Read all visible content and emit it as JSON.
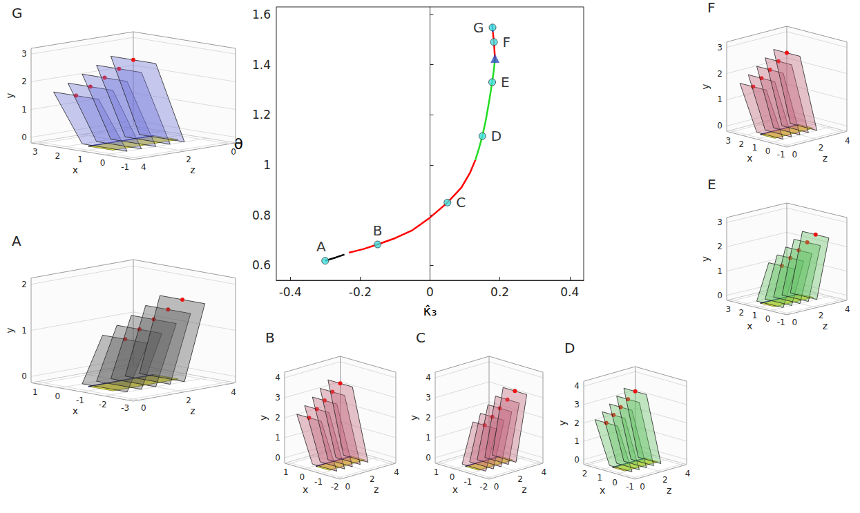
{
  "chart_data": {
    "type": "line",
    "xlabel": "κ̂₃",
    "ylabel": "θ",
    "xlim": [
      -0.44,
      0.44
    ],
    "xticks": [
      -0.4,
      -0.2,
      0,
      0.2,
      0.4
    ],
    "ylim": [
      0.54,
      1.63
    ],
    "yticks": [
      0.6,
      0.8,
      1,
      1.2,
      1.4,
      1.6
    ],
    "grid": false,
    "series": [
      {
        "color": "#000000",
        "x": [
          -0.3,
          -0.27,
          -0.245
        ],
        "values": [
          0.618,
          0.631,
          0.643
        ]
      },
      {
        "color": "#ff0000",
        "x": [
          -0.232,
          -0.19,
          -0.15,
          -0.1,
          -0.05,
          0.0,
          0.05,
          0.09,
          0.115,
          0.13
        ],
        "values": [
          0.65,
          0.665,
          0.683,
          0.708,
          0.74,
          0.79,
          0.85,
          0.91,
          0.97,
          1.02
        ]
      },
      {
        "color": "#22dd22",
        "x": [
          0.13,
          0.14,
          0.15,
          0.16,
          0.17,
          0.178,
          0.183,
          0.186
        ],
        "values": [
          1.02,
          1.065,
          1.115,
          1.18,
          1.26,
          1.33,
          1.38,
          1.425
        ]
      },
      {
        "color": "#ff0000",
        "x": [
          0.186,
          0.183,
          0.18
        ],
        "values": [
          1.425,
          1.49,
          1.53
        ]
      },
      {
        "color": "#2233cc",
        "x": [
          0.18,
          0.178
        ],
        "values": [
          1.53,
          1.56
        ]
      }
    ],
    "points": {
      "labels": [
        "A",
        "B",
        "C",
        "D",
        "E",
        "F",
        "G"
      ],
      "color": "#40dede",
      "x": [
        -0.3,
        -0.15,
        0.05,
        0.15,
        0.178,
        0.183,
        0.179
      ],
      "values": [
        0.618,
        0.683,
        0.85,
        1.115,
        1.33,
        1.49,
        1.548
      ]
    },
    "marker_point": {
      "x": 0.186,
      "value": 1.425,
      "color": "#3050c0",
      "marker": "triangle"
    }
  },
  "panels": [
    {
      "letter": "G",
      "color": "#6f73d8",
      "axis_labels": {
        "x": "x",
        "y": "y",
        "z": "z"
      },
      "xticks": [
        3,
        2,
        1,
        0,
        -1
      ],
      "yticks": [
        0,
        1,
        2,
        3
      ],
      "zticks": [
        4,
        2,
        0
      ]
    },
    {
      "letter": "A",
      "color": "#555555",
      "axis_labels": {
        "x": "x",
        "y": "y",
        "z": "z"
      },
      "xticks": [
        1,
        0,
        -1,
        -2,
        -3
      ],
      "yticks": [
        0,
        1,
        2
      ],
      "zticks": [
        0,
        2,
        4
      ]
    },
    {
      "letter": "B",
      "color": "#c0607a",
      "axis_labels": {
        "x": "x",
        "y": "y",
        "z": "z"
      },
      "xticks": [
        1,
        0,
        -1,
        -2
      ],
      "yticks": [
        0,
        1,
        2,
        3,
        4
      ],
      "zticks": [
        0,
        2,
        4
      ]
    },
    {
      "letter": "C",
      "color": "#c0607a",
      "axis_labels": {
        "x": "x",
        "y": "y",
        "z": "z"
      },
      "xticks": [
        1,
        0,
        -1,
        -2
      ],
      "yticks": [
        0,
        1,
        2,
        3,
        4
      ],
      "zticks": [
        0,
        2,
        4
      ]
    },
    {
      "letter": "D",
      "color": "#5fbf5f",
      "axis_labels": {
        "x": "x",
        "y": "y",
        "z": "z"
      },
      "xticks": [
        2,
        1,
        0,
        -1
      ],
      "yticks": [
        0,
        1,
        2,
        3,
        4
      ],
      "zticks": [
        0,
        2,
        4
      ]
    },
    {
      "letter": "E",
      "color": "#5fbf5f",
      "axis_labels": {
        "x": "x",
        "y": "y",
        "z": "z"
      },
      "xticks": [
        3,
        2,
        1,
        0,
        -1
      ],
      "yticks": [
        0,
        1,
        2,
        3
      ],
      "zticks": [
        0,
        2,
        4
      ]
    },
    {
      "letter": "F",
      "color": "#c0607a",
      "axis_labels": {
        "x": "x",
        "y": "y",
        "z": "z"
      },
      "xticks": [
        3,
        2,
        1,
        0,
        -1
      ],
      "yticks": [
        0,
        1,
        2,
        3
      ],
      "zticks": [
        0,
        2,
        4
      ]
    }
  ]
}
